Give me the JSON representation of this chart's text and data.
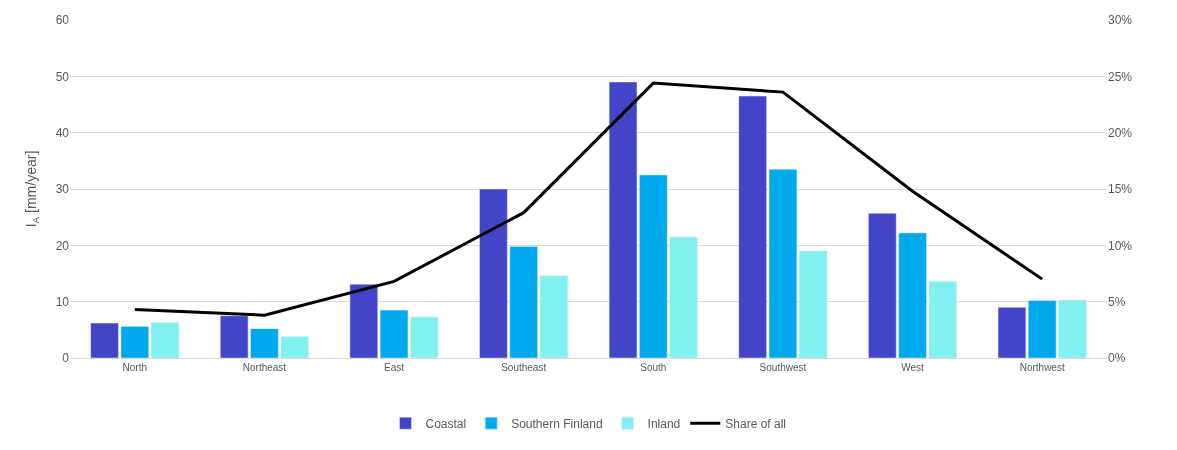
{
  "chart_data": {
    "type": "bar",
    "ylabel": "I$_{A}$ [mm/year]",
    "categories": [
      "North",
      "Northeast",
      "East",
      "Southeast",
      "South",
      "Southwest",
      "West",
      "Northwest"
    ],
    "series": [
      {
        "name": "Coastal",
        "color": "#4444c8",
        "values": [
          6.2,
          7.5,
          13.1,
          30,
          49,
          46.5,
          25.7,
          9
        ]
      },
      {
        "name": "Southern Finland",
        "color": "#00a8ec",
        "values": [
          5.6,
          5.2,
          8.5,
          19.8,
          32.5,
          33.5,
          22.2,
          10.2
        ]
      },
      {
        "name": "Inland",
        "color": "#80f0f0",
        "values": [
          6.3,
          3.8,
          7.3,
          14.6,
          21.5,
          19,
          13.6,
          10.3
        ]
      },
      {
        "name": "Share of all",
        "type": "line",
        "axis": "y2",
        "color": "#000000",
        "values": [
          4.3,
          3.8,
          6.8,
          12.9,
          24.4,
          23.6,
          14.8,
          7.0
        ]
      }
    ],
    "ylim": [
      0,
      60
    ],
    "yticks": [
      0,
      10,
      20,
      30,
      40,
      50,
      60
    ],
    "y2lim": [
      0,
      30
    ],
    "y2ticks": [
      {
        "value": 0,
        "label": "0%"
      },
      {
        "value": 5,
        "label": "5%"
      },
      {
        "value": 10,
        "label": "10%"
      },
      {
        "value": 15,
        "label": "15%"
      },
      {
        "value": 20,
        "label": "20%"
      },
      {
        "value": 25,
        "label": "25%"
      },
      {
        "value": 30,
        "label": "30%"
      }
    ],
    "grid": "y",
    "legend": "bottom",
    "marker": "none",
    "line_style": "solid"
  }
}
